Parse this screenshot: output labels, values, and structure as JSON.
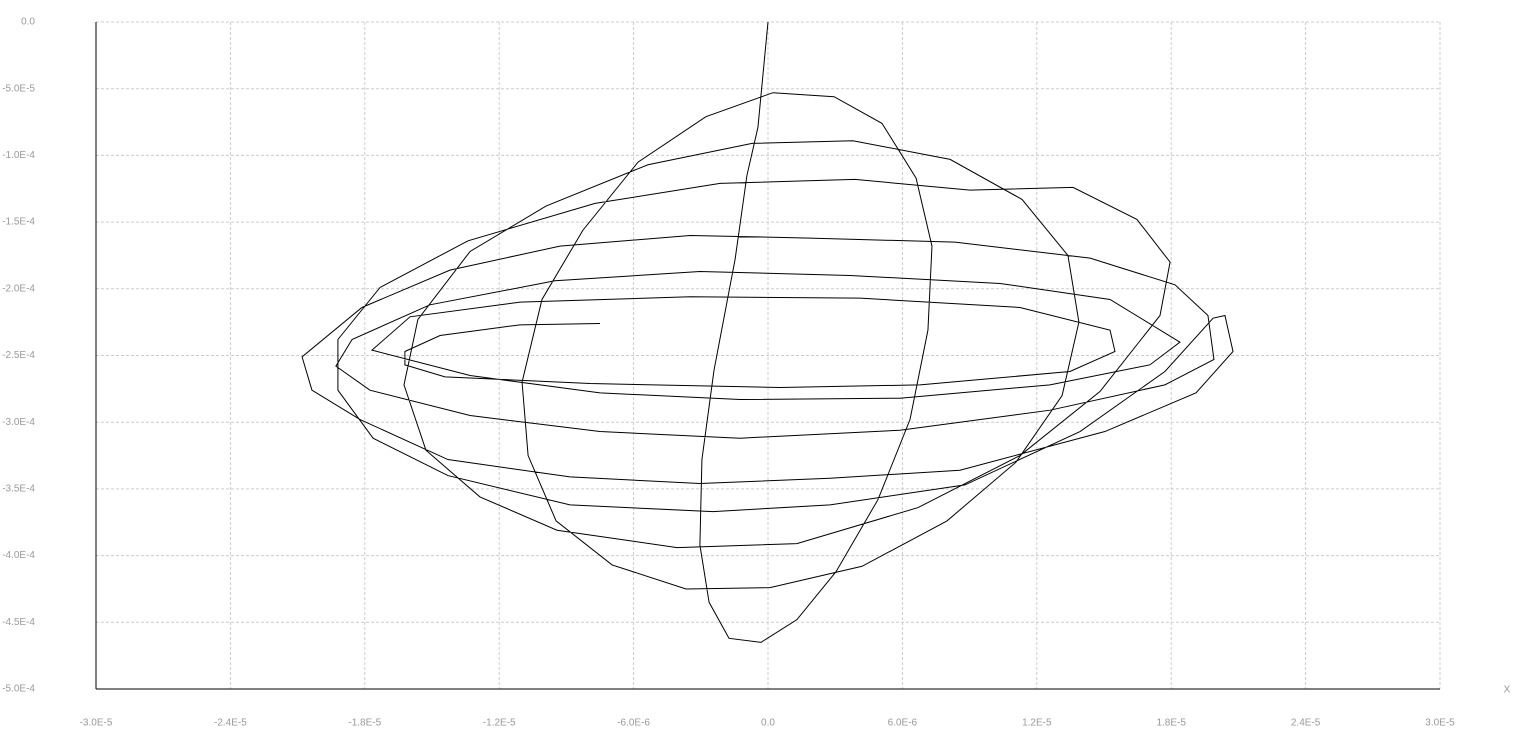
{
  "chart_data": {
    "type": "line",
    "x_label": "X",
    "xlim": [
      -3e-05,
      3e-05
    ],
    "ylim": [
      -0.0005,
      0.0
    ],
    "xticks": [
      {
        "value": -3e-05,
        "label": "-3.0E-5"
      },
      {
        "value": -2.4e-05,
        "label": "-2.4E-5"
      },
      {
        "value": -1.8e-05,
        "label": "-1.8E-5"
      },
      {
        "value": -1.2e-05,
        "label": "-1.2E-5"
      },
      {
        "value": -6e-06,
        "label": "-6.0E-6"
      },
      {
        "value": 0,
        "label": "0.0"
      },
      {
        "value": 6e-06,
        "label": "6.0E-6"
      },
      {
        "value": 1.2e-05,
        "label": "1.2E-5"
      },
      {
        "value": 1.8e-05,
        "label": "1.8E-5"
      },
      {
        "value": 2.4e-05,
        "label": "2.4E-5"
      },
      {
        "value": 3e-05,
        "label": "3.0E-5"
      }
    ],
    "yticks": [
      {
        "value": 0,
        "label": "0.0"
      },
      {
        "value": -5e-05,
        "label": "-5.0E-5"
      },
      {
        "value": -0.0001,
        "label": "-1.0E-4"
      },
      {
        "value": -0.00015,
        "label": "-1.5E-4"
      },
      {
        "value": -0.0002,
        "label": "-2.0E-4"
      },
      {
        "value": -0.00025,
        "label": "-2.5E-4"
      },
      {
        "value": -0.0003,
        "label": "-3.0E-4"
      },
      {
        "value": -0.00035,
        "label": "-3.5E-4"
      },
      {
        "value": -0.0004,
        "label": "-4.0E-4"
      },
      {
        "value": -0.00045,
        "label": "-4.5E-4"
      },
      {
        "value": -0.0005,
        "label": "-5.0E-4"
      }
    ],
    "grid": true,
    "x": [
      0,
      -4.5e-07,
      -9.4e-07,
      -1.47e-06,
      -2.41e-06,
      -2.95e-06,
      -3.04e-06,
      -2.63e-06,
      -1.74e-06,
      -3.1e-07,
      1.29e-06,
      3.04e-06,
      4.91e-06,
      6.34e-06,
      7.14e-06,
      7.32e-06,
      6.61e-06,
      5.09e-06,
      2.95e-06,
      2.2e-07,
      -2.77e-06,
      -5.8e-06,
      -8.26e-06,
      -1.009e-05,
      -1.098e-05,
      -1.071e-05,
      -9.46e-06,
      -6.96e-06,
      -3.66e-06,
      9e-08,
      4.2e-06,
      7.99e-06,
      1.107e-05,
      1.313e-05,
      1.388e-05,
      1.339e-05,
      1.134e-05,
      8.13e-06,
      3.79e-06,
      -7.1e-07,
      -5.36e-06,
      -9.91e-06,
      -1.33e-05,
      -1.563e-05,
      -1.625e-05,
      -1.527e-05,
      -1.286e-05,
      -9.42e-06,
      -4.06e-06,
      1.29e-06,
      6.7e-06,
      1.125e-05,
      1.482e-05,
      1.75e-05,
      1.795e-05,
      1.647e-05,
      1.362e-05,
      9.02e-06,
      3.88e-06,
      -2.14e-06,
      -7.72e-06,
      -1.339e-05,
      -1.732e-05,
      -1.92e-05,
      -1.92e-05,
      -1.763e-05,
      -1.429e-05,
      -8.84e-06,
      -2.46e-06,
      2.77e-06,
      8.79e-06,
      1.393e-05,
      1.772e-05,
      1.987e-05,
      2.04e-05,
      2.076e-05,
      1.911e-05,
      1.504e-05,
      8.57e-06,
      2.77e-06,
      -3.04e-06,
      -8.84e-06,
      -1.429e-05,
      -1.821e-05,
      -2.036e-05,
      -2.08e-05,
      -1.813e-05,
      -1.42e-05,
      -9.29e-06,
      -3.48e-06,
      1.88e-06,
      8.35e-06,
      1.438e-05,
      1.817e-05,
      1.964e-05,
      1.991e-05,
      1.772e-05,
      1.259e-05,
      5.89e-06,
      -1.25e-06,
      -7.5e-06,
      -1.33e-05,
      -1.777e-05,
      -1.929e-05,
      -1.857e-05,
      -1.509e-05,
      -9.51e-06,
      -3.04e-06,
      3.66e-06,
      1.036e-05,
      1.527e-05,
      1.839e-05,
      1.705e-05,
      1.259e-05,
      5.89e-06,
      -1.25e-06,
      -7.5e-06,
      -1.33e-05,
      -1.768e-05,
      -1.598e-05,
      -1.107e-05,
      -3.48e-06,
      4.11e-06,
      1.125e-05,
      1.527e-05,
      1.549e-05,
      1.348e-05,
      6.79e-06,
      5.4e-07,
      -7.95e-06,
      -1.442e-05,
      -1.621e-05,
      -1.621e-05,
      -1.464e-05,
      -1.107e-05,
      -7.5e-06
    ],
    "series": [
      {
        "color": "#000000",
        "values": [
          0,
          -7.9e-05,
          -0.000115,
          -0.000178,
          -0.000261,
          -0.000328,
          -0.000392,
          -0.000435,
          -0.000462,
          -0.000465,
          -0.000448,
          -0.000412,
          -0.000358,
          -0.000298,
          -0.000231,
          -0.000168,
          -0.000117,
          -7.6e-05,
          -5.6e-05,
          -5.3e-05,
          -7.1e-05,
          -0.000105,
          -0.000156,
          -0.000208,
          -0.00027,
          -0.000325,
          -0.000374,
          -0.000407,
          -0.000425,
          -0.000424,
          -0.000408,
          -0.000374,
          -0.00033,
          -0.00028,
          -0.000225,
          -0.000175,
          -0.000133,
          -0.000103,
          -8.9e-05,
          -9.1e-05,
          -0.000107,
          -0.000138,
          -0.000172,
          -0.000223,
          -0.000272,
          -0.000321,
          -0.000356,
          -0.000381,
          -0.000394,
          -0.000391,
          -0.000364,
          -0.000325,
          -0.000277,
          -0.00022,
          -0.00018,
          -0.000148,
          -0.000124,
          -0.000126,
          -0.000118,
          -0.000121,
          -0.000136,
          -0.000164,
          -0.000199,
          -0.000238,
          -0.000276,
          -0.000312,
          -0.00034,
          -0.000362,
          -0.000367,
          -0.000362,
          -0.000347,
          -0.000307,
          -0.000262,
          -0.000222,
          -0.00022,
          -0.000247,
          -0.000278,
          -0.000307,
          -0.000336,
          -0.000342,
          -0.000346,
          -0.000341,
          -0.000328,
          -0.000298,
          -0.000276,
          -0.000251,
          -0.000214,
          -0.000186,
          -0.000168,
          -0.00016,
          -0.000162,
          -0.000165,
          -0.000177,
          -0.000197,
          -0.00022,
          -0.000253,
          -0.000272,
          -0.000291,
          -0.000306,
          -0.000312,
          -0.000307,
          -0.000295,
          -0.000276,
          -0.000258,
          -0.000238,
          -0.000212,
          -0.000194,
          -0.000187,
          -0.00019,
          -0.000196,
          -0.000208,
          -0.00024,
          -0.000257,
          -0.000272,
          -0.000282,
          -0.000283,
          -0.000278,
          -0.000265,
          -0.000246,
          -0.000221,
          -0.00021,
          -0.000206,
          -0.000207,
          -0.000214,
          -0.000231,
          -0.000247,
          -0.000262,
          -0.000272,
          -0.000274,
          -0.000271,
          -0.000266,
          -0.000257,
          -0.000247,
          -0.000235,
          -0.000227,
          -0.000226
        ]
      }
    ]
  }
}
